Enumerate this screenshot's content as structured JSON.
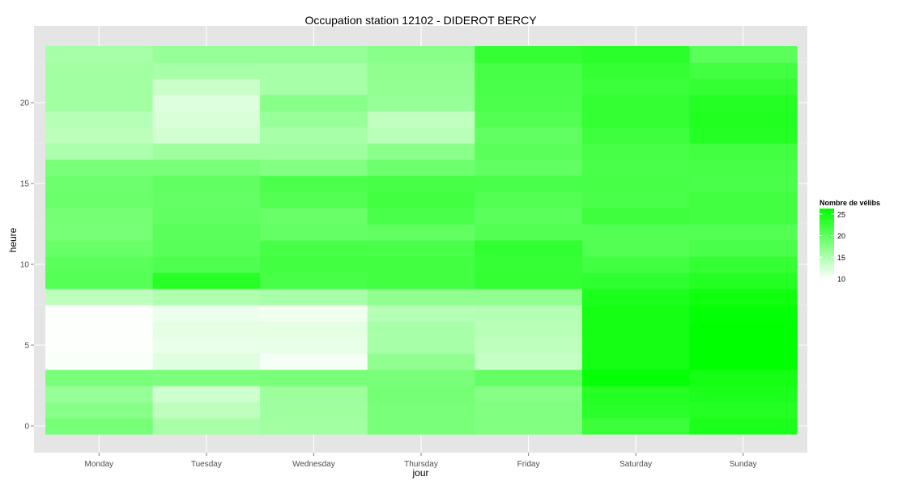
{
  "chart_data": {
    "type": "heatmap",
    "title": "Occupation station 12102 - DIDEROT BERCY",
    "xlabel": "jour",
    "ylabel": "heure",
    "categories": [
      "Monday",
      "Tuesday",
      "Wednesday",
      "Thursday",
      "Friday",
      "Saturday",
      "Sunday"
    ],
    "hours": [
      0,
      1,
      2,
      3,
      4,
      5,
      6,
      7,
      8,
      9,
      10,
      11,
      12,
      13,
      14,
      15,
      16,
      17,
      18,
      19,
      20,
      21,
      22,
      23
    ],
    "ylim": [
      -0.5,
      23.5
    ],
    "yticks": [
      0,
      5,
      10,
      15,
      20
    ],
    "grid": true,
    "legend": {
      "title": "Nombre de vélibs",
      "placement": "right",
      "ticks": [
        10,
        15,
        20,
        25
      ],
      "range": [
        9.8,
        26.3
      ],
      "low_color": "#ffffff",
      "high_color": "#00ff00"
    },
    "values": [
      [
        18.6,
        17.5,
        16.5,
        18.5,
        10.2,
        10.0,
        10.0,
        10.0,
        14.0,
        20.8,
        20.5,
        19.5,
        18.6,
        18.8,
        19.3,
        19.2,
        18.5,
        15.2,
        14.2,
        14.5,
        15.8,
        15.8,
        15.8,
        15.5
      ],
      [
        15.4,
        14.0,
        13.0,
        18.2,
        11.8,
        11.2,
        11.5,
        11.0,
        15.0,
        23.8,
        21.2,
        20.6,
        20.4,
        20.0,
        19.8,
        20.0,
        18.5,
        16.0,
        12.8,
        12.3,
        12.0,
        13.2,
        15.5,
        16.5
      ],
      [
        15.8,
        16.0,
        16.2,
        18.5,
        10.4,
        11.3,
        11.5,
        10.8,
        15.5,
        21.8,
        22.0,
        21.8,
        19.8,
        19.5,
        21.0,
        21.3,
        17.8,
        16.0,
        15.5,
        16.4,
        17.5,
        15.5,
        15.5,
        16.5
      ],
      [
        18.5,
        18.5,
        18.8,
        18.5,
        17.0,
        15.5,
        15.5,
        14.5,
        17.0,
        22.0,
        22.0,
        21.5,
        20.0,
        21.5,
        22.0,
        21.8,
        19.2,
        17.4,
        14.3,
        13.8,
        16.5,
        16.8,
        17.0,
        17.5
      ],
      [
        18.0,
        18.0,
        17.6,
        19.8,
        13.5,
        14.0,
        14.4,
        14.6,
        17.0,
        23.0,
        22.9,
        23.2,
        21.0,
        20.4,
        21.0,
        21.5,
        20.0,
        20.5,
        20.0,
        21.0,
        21.3,
        21.5,
        21.8,
        23.0
      ],
      [
        22.5,
        23.5,
        24.0,
        26.0,
        25.0,
        25.0,
        25.0,
        25.0,
        24.5,
        23.3,
        22.0,
        21.0,
        21.0,
        22.3,
        21.5,
        21.8,
        21.5,
        21.8,
        22.3,
        23.0,
        23.0,
        22.5,
        23.0,
        23.5
      ],
      [
        24.5,
        24.0,
        24.5,
        25.0,
        26.3,
        26.3,
        26.3,
        26.0,
        25.3,
        24.0,
        23.0,
        21.5,
        21.0,
        22.0,
        22.0,
        21.5,
        21.8,
        22.0,
        24.0,
        24.2,
        24.0,
        23.0,
        22.0,
        20.5
      ]
    ]
  }
}
